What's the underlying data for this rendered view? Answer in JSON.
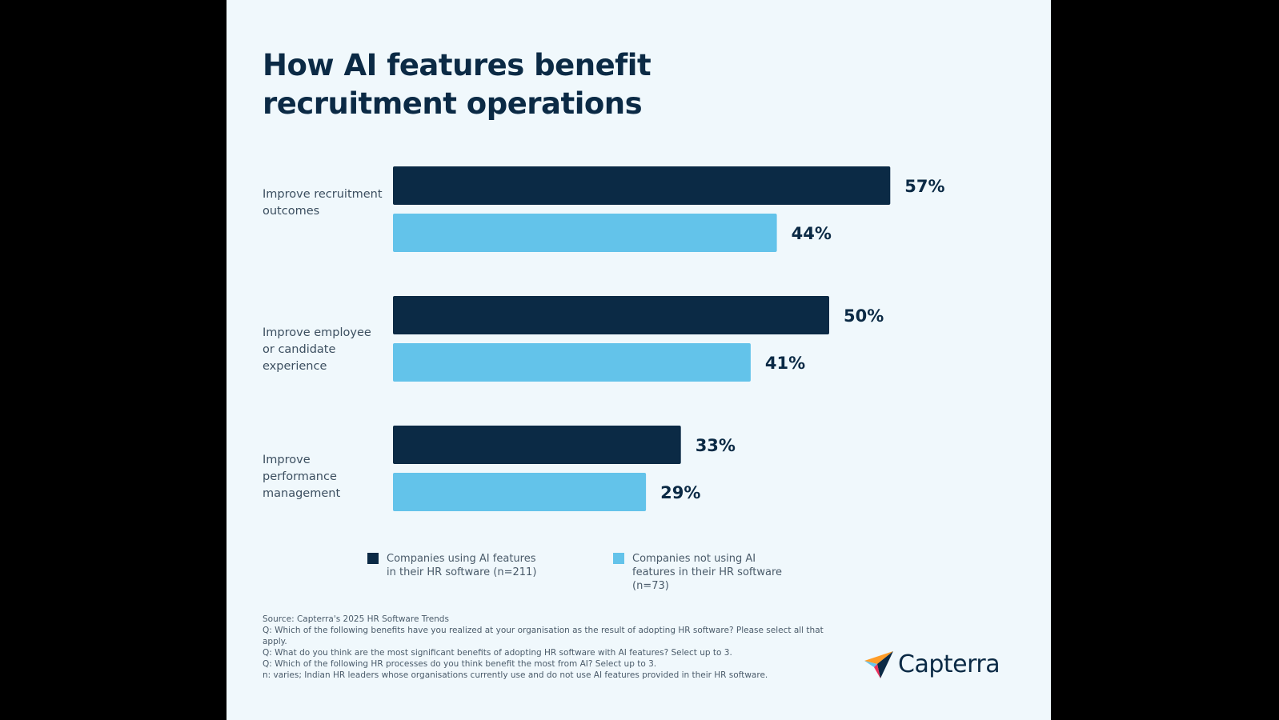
{
  "chart_data": {
    "type": "bar",
    "orientation": "horizontal",
    "title": "How AI features benefit recruitment operations",
    "categories": [
      "Improve recruitment outcomes",
      "Improve employee or candidate experience",
      "Improve performance management"
    ],
    "series": [
      {
        "name": "Companies using AI features in their HR software (n=211)",
        "color": "#0b2a45",
        "values": [
          57,
          50,
          33
        ]
      },
      {
        "name": "Companies not using AI features in their HR software (n=73)",
        "color": "#63c3ea",
        "values": [
          44,
          41,
          29
        ]
      }
    ],
    "value_suffix": "%",
    "xlim": [
      0,
      100
    ],
    "grid": false,
    "legend_position": "bottom"
  },
  "footnote": {
    "source": "Source: Capterra's 2025 HR Software Trends",
    "q1": "Q: Which of the following benefits have you realized at your organisation as the result of adopting HR software? Please select all that apply.",
    "q2": "Q: What do you think are the most significant benefits of adopting HR software with AI features? Select up to 3.",
    "q3": "Q: Which of the following HR processes do you think benefit the most from AI? Select up to 3.",
    "n": "n: varies; Indian HR leaders whose organisations currently use and do not use AI features provided in their HR software."
  },
  "logo": {
    "text": "Capterra",
    "icon": "capterra-arrow-icon"
  }
}
